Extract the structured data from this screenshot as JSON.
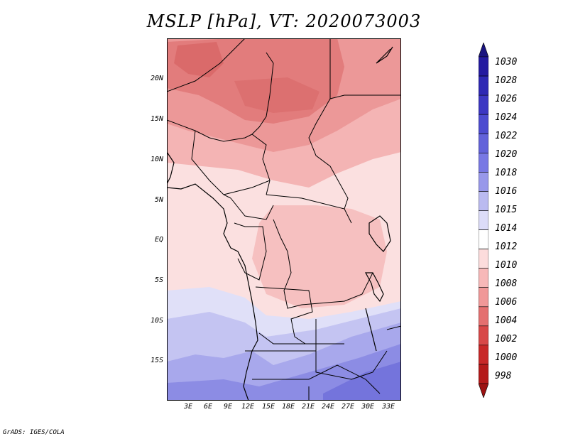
{
  "title": "MSLP [hPa], VT: 2020073003",
  "map": {
    "latitude_labels": [
      "20N",
      "15N",
      "10N",
      "5N",
      "EQ",
      "5S",
      "10S",
      "15S"
    ],
    "longitude_labels": [
      "3E",
      "6E",
      "9E",
      "12E",
      "15E",
      "18E",
      "21E",
      "24E",
      "27E",
      "30E",
      "33E"
    ]
  },
  "colorbar": {
    "labels": [
      "1030",
      "1028",
      "1026",
      "1024",
      "1022",
      "1020",
      "1018",
      "1016",
      "1015",
      "1014",
      "1012",
      "1010",
      "1008",
      "1006",
      "1004",
      "1002",
      "1000",
      "998"
    ],
    "colors": [
      "#1a1480",
      "#241aa0",
      "#2e28b4",
      "#3c37c3",
      "#4c4bd0",
      "#6262da",
      "#7878e4",
      "#9898ea",
      "#babaf0",
      "#dcdcf8",
      "#ffffff",
      "#fcdcdc",
      "#f7b8b8",
      "#f09898",
      "#e47070",
      "#d84848",
      "#c82828",
      "#b41a1a",
      "#9c1212"
    ]
  },
  "credit": "GrADS: IGES/COLA"
}
